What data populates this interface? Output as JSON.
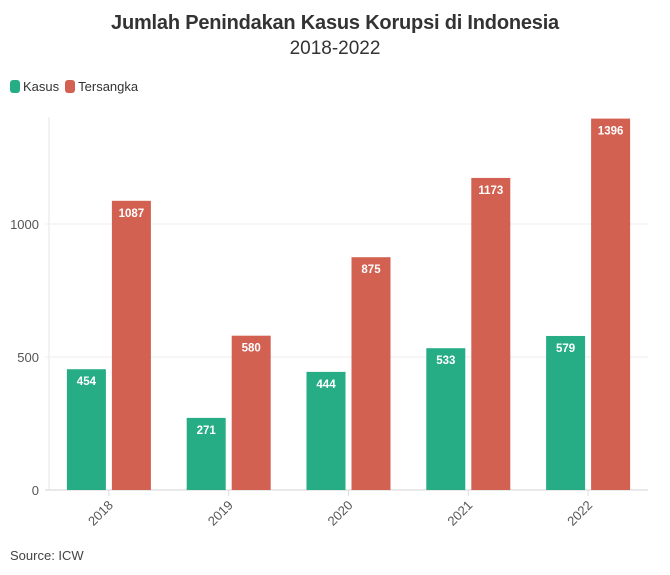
{
  "title": "Jumlah Penindakan Kasus Korupsi di Indonesia",
  "subtitle": "2018-2022",
  "source": "Source: ICW",
  "legend": [
    {
      "label": "Kasus",
      "color": "#26ad86"
    },
    {
      "label": "Tersangka",
      "color": "#d36151"
    }
  ],
  "chart_data": {
    "type": "bar",
    "title": "Jumlah Penindakan Kasus Korupsi di Indonesia",
    "subtitle": "2018-2022",
    "categories": [
      "2018",
      "2019",
      "2020",
      "2021",
      "2022"
    ],
    "series": [
      {
        "name": "Kasus",
        "color": "#26ad86",
        "values": [
          454,
          271,
          444,
          533,
          579
        ]
      },
      {
        "name": "Tersangka",
        "color": "#d36151",
        "values": [
          1087,
          580,
          875,
          1173,
          1396
        ]
      }
    ],
    "xlabel": "",
    "ylabel": "",
    "yticks": [
      0,
      500,
      1000
    ],
    "ylim": [
      0,
      1402
    ],
    "grid": true,
    "legend_position": "top-left",
    "data_labels": true,
    "source": "Source: ICW"
  }
}
